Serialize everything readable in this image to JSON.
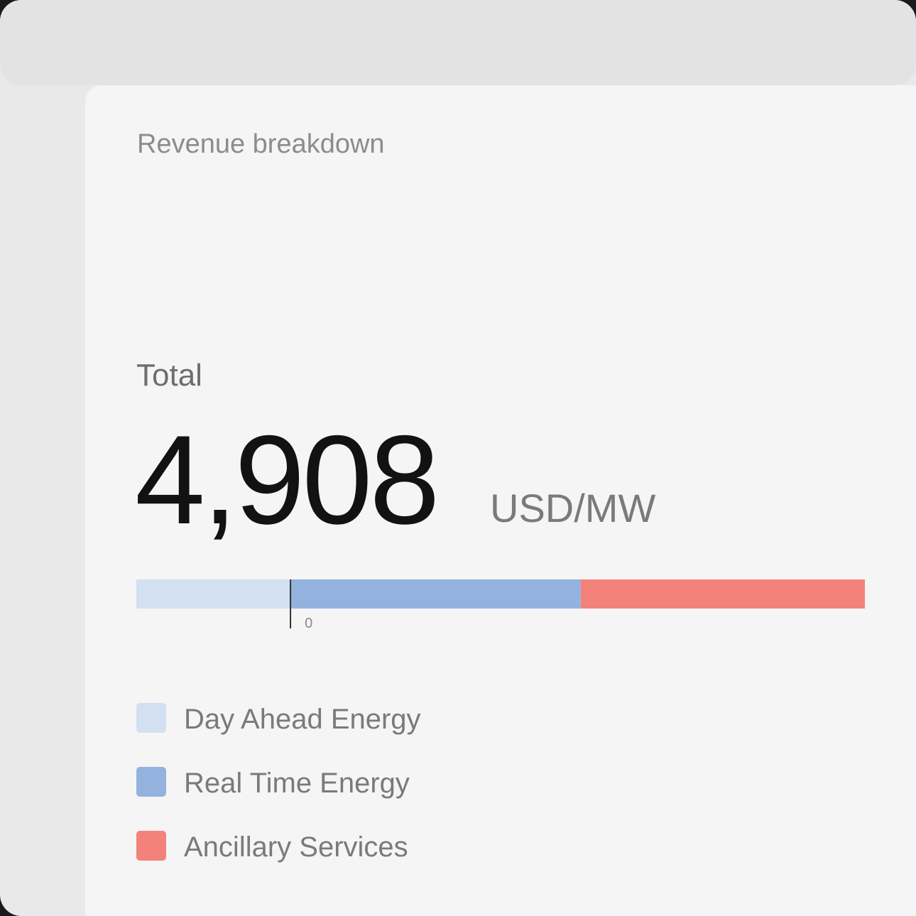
{
  "card": {
    "title": "Revenue breakdown",
    "total_label": "Total",
    "total_value": "4,908",
    "unit": "USD/MW"
  },
  "chart_data": {
    "type": "stacked-bar",
    "series": [
      {
        "name": "Day Ahead Energy",
        "color": "#d3e0f2",
        "values": [
          -1800
        ]
      },
      {
        "name": "Real Time Energy",
        "color": "#93b3de",
        "values": [
          3390
        ]
      },
      {
        "name": "Ancillary Services",
        "color": "#f3827a",
        "values": [
          3318
        ]
      }
    ],
    "xlim": [
      -1800,
      6708
    ],
    "xticks": [
      0
    ]
  }
}
